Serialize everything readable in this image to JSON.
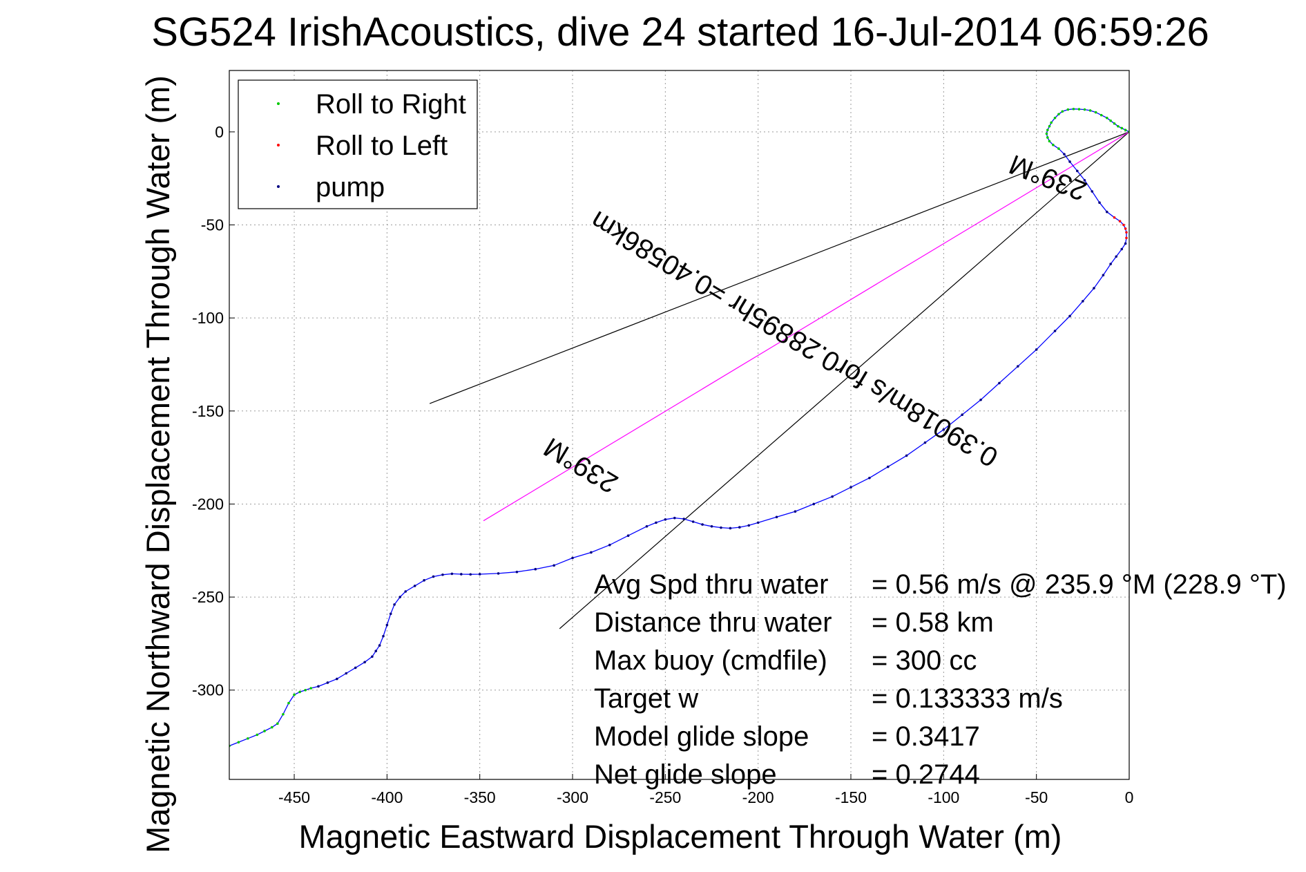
{
  "chart_data": {
    "type": "line",
    "title": "SG524 IrishAcoustics, dive 24 started 16-Jul-2014 06:59:26",
    "xlabel": "Magnetic Eastward Displacement Through Water (m)",
    "ylabel": "Magnetic Northward Displacement Through Water (m)",
    "xlim": [
      -485,
      0
    ],
    "ylim": [
      -348,
      33
    ],
    "xticks": [
      -450,
      -400,
      -350,
      -300,
      -250,
      -200,
      -150,
      -100,
      -50,
      0
    ],
    "yticks": [
      0,
      -50,
      -100,
      -150,
      -200,
      -250,
      -300
    ],
    "grid": true,
    "legend_position": "top-left",
    "legend": [
      {
        "name": "Roll to Right",
        "color": "#00c800"
      },
      {
        "name": "Roll to Left",
        "color": "#ff0000"
      },
      {
        "name": "pump",
        "color": "#000080"
      }
    ],
    "track": {
      "color": "#0000ff",
      "x": [
        0,
        -2,
        -4,
        -6,
        -8,
        -10,
        -12,
        -15,
        -18,
        -21,
        -24,
        -27,
        -30,
        -33,
        -36,
        -38,
        -40,
        -42,
        -43,
        -44,
        -44.5,
        -44,
        -43,
        -41,
        -38,
        -35,
        -32,
        -28,
        -24,
        -20,
        -16,
        -12,
        -8,
        -5,
        -3,
        -2,
        -1.5,
        -1.5,
        -2,
        -4,
        -7,
        -10,
        -14,
        -19,
        -25,
        -32,
        -40,
        -50,
        -60,
        -70,
        -80,
        -90,
        -100,
        -110,
        -120,
        -130,
        -140,
        -150,
        -160,
        -170,
        -180,
        -190,
        -200,
        -205,
        -210,
        -215,
        -220,
        -225,
        -230,
        -235,
        -240,
        -245,
        -250,
        -255,
        -260,
        -270,
        -280,
        -290,
        -300,
        -310,
        -320,
        -330,
        -340,
        -350,
        -355,
        -360,
        -365,
        -370,
        -375,
        -380,
        -385,
        -390,
        -393,
        -396,
        -398,
        -400,
        -402,
        -404,
        -406,
        -408,
        -412,
        -417,
        -422,
        -427,
        -432,
        -437,
        -441,
        -444,
        -447,
        -450,
        -453,
        -456,
        -459,
        -462,
        -466,
        -470,
        -475,
        -480,
        -485
      ],
      "y": [
        0,
        1,
        2,
        3,
        4.5,
        6,
        7.5,
        9,
        10.5,
        11.5,
        12,
        12.2,
        12.3,
        12,
        11,
        9.5,
        7.5,
        5,
        3,
        1,
        -1,
        -3,
        -5,
        -7,
        -9,
        -12,
        -16,
        -21,
        -26,
        -32,
        -38,
        -43,
        -46,
        -48,
        -50,
        -52,
        -54,
        -57,
        -60,
        -63,
        -67,
        -71,
        -77,
        -84,
        -91,
        -99,
        -107,
        -117,
        -126,
        -135,
        -144,
        -152,
        -160,
        -167,
        -174,
        -180,
        -186,
        -191,
        -196,
        -200,
        -204,
        -207,
        -210,
        -211.5,
        -212.5,
        -213,
        -212.7,
        -212,
        -211,
        -209.5,
        -208,
        -207.5,
        -208.3,
        -210,
        -212,
        -217,
        -222,
        -226,
        -229,
        -233,
        -235,
        -236.5,
        -237.3,
        -237.7,
        -237.8,
        -237.7,
        -237.5,
        -238,
        -239,
        -241,
        -244,
        -247,
        -250,
        -254,
        -259,
        -265,
        -271,
        -276,
        -279,
        -282,
        -285,
        -288,
        -291,
        -294,
        -296,
        -298,
        -299,
        -300,
        -301,
        -302.5,
        -307,
        -313,
        -318,
        -320,
        -322,
        -324,
        -326,
        -328,
        -330
      ]
    },
    "annotation_lines": [
      {
        "x": [
          0,
          -377
        ],
        "y": [
          0,
          -146
        ],
        "color": "#000000"
      },
      {
        "x": [
          0,
          -307
        ],
        "y": [
          0,
          -267
        ],
        "color": "#000000"
      },
      {
        "x": [
          0,
          -348
        ],
        "y": [
          0,
          -209
        ],
        "color": "#ff00ff"
      }
    ],
    "annotations": [
      {
        "text": "239°M",
        "x": -42,
        "y": -20,
        "angle": 201.5
      },
      {
        "text": "0.39018m/s for0.28895hr =0.40586km",
        "x": -178,
        "y": -107,
        "angle": 211
      },
      {
        "text": "239°M",
        "x": -293,
        "y": -175,
        "angle": 211
      }
    ],
    "stats": [
      {
        "label": "Avg Spd thru water",
        "value": "=  0.56 m/s @ 235.9 °M (228.9 °T)"
      },
      {
        "label": "Distance thru water",
        "value": "=  0.58 km"
      },
      {
        "label": "Max buoy (cmdfile)",
        "value": "= 300 cc"
      },
      {
        "label": "Target w",
        "value": "= 0.133333 m/s"
      },
      {
        "label": "Model glide slope",
        "value": "= 0.3417"
      },
      {
        "label": "Net glide slope",
        "value": "= 0.2744"
      }
    ]
  }
}
